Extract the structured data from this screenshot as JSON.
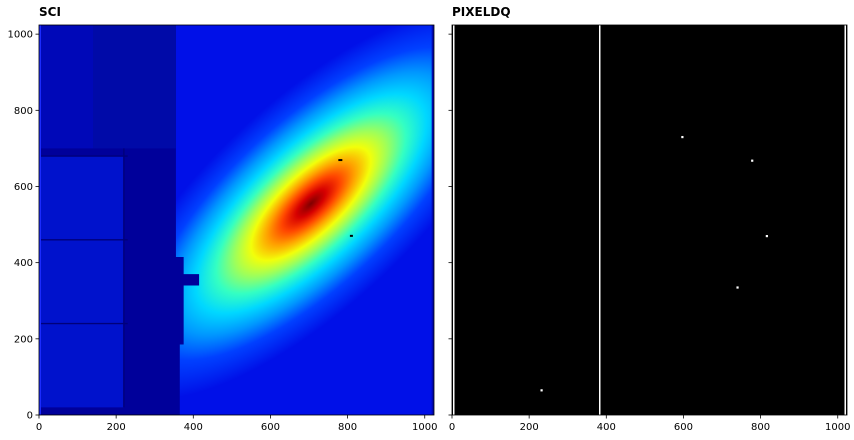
{
  "chart_data": [
    {
      "type": "heatmap",
      "title": "SCI",
      "xlabel": "",
      "ylabel": "",
      "xlim": [
        0,
        1024
      ],
      "ylim": [
        0,
        1024
      ],
      "xticks": [
        0,
        200,
        400,
        600,
        800,
        1000
      ],
      "yticks": [
        0,
        200,
        400,
        600,
        800,
        1000
      ],
      "colormap": "jet",
      "galaxy": {
        "center": [
          705,
          555
        ],
        "orientation": "elongated along diagonal, lower-left to upper-right"
      },
      "features": {
        "low_region_x_max": 360,
        "detector_panel_boundaries_x": [
          220
        ],
        "detector_panel_boundaries_y": [
          240,
          460,
          680
        ]
      },
      "colors": {
        "low": "#00008f",
        "mid": "#00ffff",
        "high": "#7f0000"
      }
    },
    {
      "type": "heatmap",
      "title": "PIXELDQ",
      "xlabel": "",
      "ylabel": "",
      "xlim": [
        0,
        1024
      ],
      "ylim": [
        0,
        1024
      ],
      "xticks": [
        0,
        200,
        400,
        600,
        800,
        1000
      ],
      "yticks": [
        0,
        200,
        400,
        600,
        800,
        1000
      ],
      "colormap": "gray",
      "flagged_column_x": 383,
      "flagged_pixels": [
        {
          "x": 232,
          "y": 65
        },
        {
          "x": 597,
          "y": 730
        },
        {
          "x": 778,
          "y": 668
        },
        {
          "x": 816,
          "y": 470
        },
        {
          "x": 740,
          "y": 335
        }
      ],
      "colors": {
        "background": "#000000",
        "flag": "#ffffff"
      }
    }
  ]
}
